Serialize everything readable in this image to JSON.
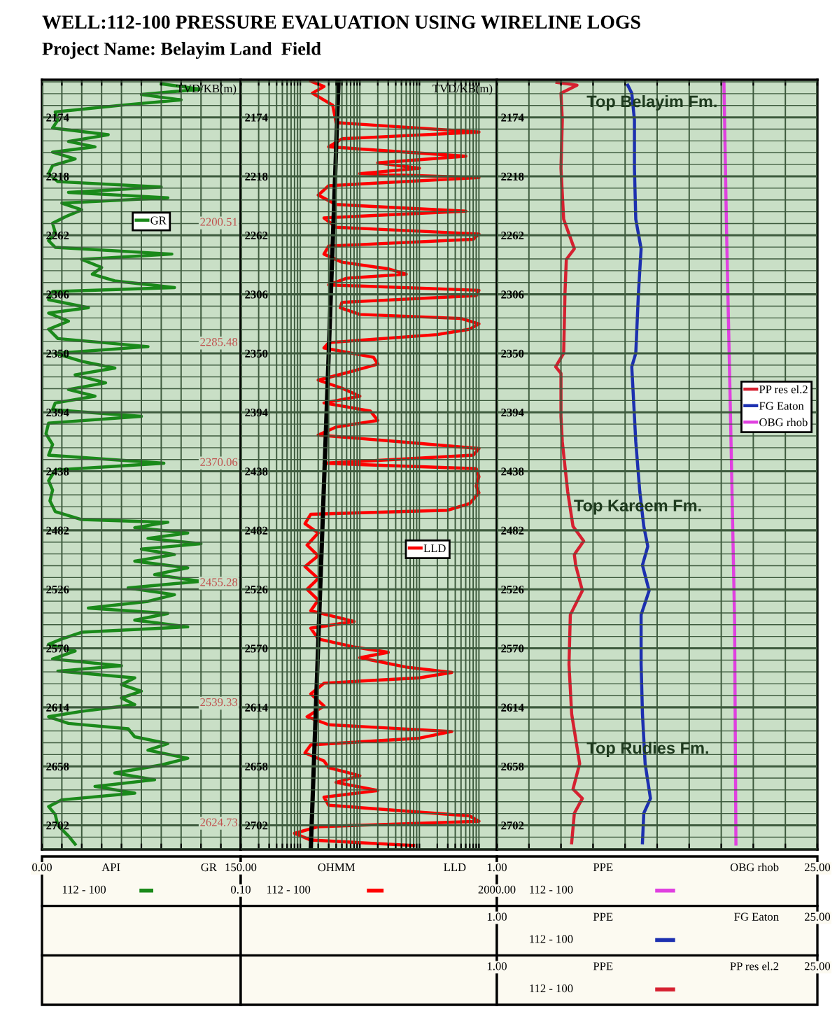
{
  "chart_data": [
    {
      "type": "line",
      "orientation": "horizontal",
      "title": "WELL:112-100 PRESSURE EVALUATION USING WIRELINE LOGS",
      "subtitle": "Project Name: Belayim Land  Field",
      "xlabel": "API",
      "legend_title": "112 - 100",
      "legend": "top",
      "grid": true,
      "xlim": [
        0,
        150
      ],
      "ylim": [
        2720,
        2146
      ],
      "xticks": [
        {
          "value": 0,
          "label": "0.00"
        },
        {
          "value": 15,
          "label": null
        },
        {
          "value": 30,
          "label": null
        },
        {
          "value": 45,
          "label": null
        },
        {
          "value": 60,
          "label": null
        },
        {
          "value": 75,
          "label": null
        },
        {
          "value": 90,
          "label": null
        },
        {
          "value": 105,
          "label": null
        },
        {
          "value": 120,
          "label": null
        },
        {
          "value": 135,
          "label": null
        },
        {
          "value": 150,
          "label": "150.00"
        }
      ],
      "yticks": [
        {
          "value": 2147.6,
          "label": null
        },
        {
          "value": 2156.4,
          "label": null
        },
        {
          "value": 2165.2,
          "label": null
        },
        2174,
        {
          "value": 2182.8,
          "label": null
        },
        {
          "value": 2191.6,
          "label": null
        },
        {
          "value": 2200.4,
          "label": null
        },
        {
          "value": 2209.2,
          "label": null
        },
        2218,
        {
          "value": 2226.8,
          "label": null
        },
        {
          "value": 2235.6,
          "label": null
        },
        {
          "value": 2244.4,
          "label": null
        },
        {
          "value": 2253.2,
          "label": null
        },
        2262,
        {
          "value": 2270.8,
          "label": null
        },
        {
          "value": 2279.6,
          "label": null
        },
        {
          "value": 2288.4,
          "label": null
        },
        {
          "value": 2297.2,
          "label": null
        },
        2306,
        {
          "value": 2314.8,
          "label": null
        },
        {
          "value": 2323.6,
          "label": null
        },
        {
          "value": 2332.4,
          "label": null
        },
        {
          "value": 2341.2,
          "label": null
        },
        2350,
        {
          "value": 2358.8,
          "label": null
        },
        {
          "value": 2367.6,
          "label": null
        },
        {
          "value": 2376.4,
          "label": null
        },
        {
          "value": 2385.2,
          "label": null
        },
        2394,
        {
          "value": 2402.8,
          "label": null
        },
        {
          "value": 2411.6,
          "label": null
        },
        {
          "value": 2420.4,
          "label": null
        },
        {
          "value": 2429.2,
          "label": null
        },
        2438,
        {
          "value": 2446.8,
          "label": null
        },
        {
          "value": 2455.6,
          "label": null
        },
        {
          "value": 2464.4,
          "label": null
        },
        {
          "value": 2473.2,
          "label": null
        },
        2482,
        {
          "value": 2490.8,
          "label": null
        },
        {
          "value": 2499.6,
          "label": null
        },
        {
          "value": 2508.4,
          "label": null
        },
        {
          "value": 2517.2,
          "label": null
        },
        2526,
        {
          "value": 2534.8,
          "label": null
        },
        {
          "value": 2543.6,
          "label": null
        },
        {
          "value": 2552.4,
          "label": null
        },
        {
          "value": 2561.2,
          "label": null
        },
        2570,
        {
          "value": 2578.8,
          "label": null
        },
        {
          "value": 2587.6,
          "label": null
        },
        {
          "value": 2596.4,
          "label": null
        },
        {
          "value": 2605.2,
          "label": null
        },
        2614,
        {
          "value": 2622.8,
          "label": null
        },
        {
          "value": 2631.6,
          "label": null
        },
        {
          "value": 2640.4,
          "label": null
        },
        {
          "value": 2649.2,
          "label": null
        },
        2658,
        {
          "value": 2666.8,
          "label": null
        },
        {
          "value": 2675.6,
          "label": null
        },
        {
          "value": 2684.4,
          "label": null
        },
        {
          "value": 2693.2,
          "label": null
        },
        2702,
        {
          "value": 2710.8,
          "label": null
        },
        {
          "value": 2719.6,
          "label": null
        }
      ],
      "annotations": [
        "2200.51",
        "2285.48",
        "2370.06",
        "2455.28",
        "2539.33",
        "2624.73"
      ],
      "series": [
        {
          "name": "GR",
          "color": "#1a8a1a",
          "x": [
            2149,
            2153,
            2157,
            2161,
            2165,
            2170,
            2176,
            2182,
            2187,
            2192,
            2196,
            2200,
            2205,
            2210,
            2216,
            2222,
            2226,
            2230,
            2234,
            2238,
            2243,
            2248,
            2253,
            2260,
            2266,
            2271,
            2276,
            2280,
            2286,
            2291,
            2296,
            2301,
            2304,
            2310,
            2316,
            2320,
            2326,
            2332,
            2339,
            2345,
            2350,
            2356,
            2361,
            2366,
            2372,
            2377,
            2382,
            2387,
            2392,
            2397,
            2402,
            2410,
            2418,
            2426,
            2432,
            2437,
            2445,
            2452,
            2460,
            2468,
            2474,
            2476,
            2480,
            2484,
            2488,
            2492,
            2496,
            2500,
            2505,
            2510,
            2515,
            2520,
            2525,
            2530,
            2535,
            2540,
            2544,
            2549,
            2554,
            2558,
            2563,
            2567,
            2572,
            2578,
            2583,
            2587,
            2592,
            2597,
            2602,
            2607,
            2612,
            2617,
            2621,
            2626,
            2630,
            2636,
            2641,
            2646,
            2652,
            2657,
            2663,
            2668,
            2673,
            2678,
            2683,
            2688,
            2694,
            2702,
            2710,
            2716
          ],
          "values": [
            90,
            120,
            75,
            105,
            60,
            10,
            12,
            8,
            50,
            20,
            40,
            8,
            25,
            8,
            5,
            12,
            90,
            20,
            95,
            15,
            30,
            18,
            8,
            10,
            5,
            10,
            98,
            30,
            45,
            38,
            55,
            100,
            8,
            5,
            35,
            5,
            20,
            5,
            12,
            80,
            10,
            30,
            55,
            25,
            48,
            20,
            40,
            10,
            8,
            75,
            5,
            3,
            8,
            5,
            92,
            10,
            5,
            8,
            6,
            10,
            30,
            95,
            70,
            110,
            80,
            120,
            75,
            100,
            70,
            110,
            85,
            120,
            65,
            100,
            80,
            35,
            95,
            70,
            110,
            30,
            15,
            5,
            25,
            8,
            60,
            12,
            70,
            60,
            75,
            60,
            70,
            30,
            5,
            20,
            65,
            70,
            95,
            80,
            110,
            90,
            55,
            85,
            40,
            70,
            15,
            5,
            10,
            12,
            20,
            25
          ]
        }
      ]
    },
    {
      "type": "line",
      "orientation": "horizontal",
      "log": "x",
      "xlabel": "OHMM",
      "ylabel": "TVD/KB(m)",
      "legend_title": "112 - 100",
      "legend": "center",
      "grid": true,
      "xlim": [
        0.1,
        2000
      ],
      "ylim": [
        2720,
        2146
      ],
      "xticks": [
        {
          "value": 0.1,
          "label": "0.10"
        },
        {
          "value": 0.2,
          "label": null
        },
        {
          "value": 0.3,
          "label": null
        },
        {
          "value": 0.4,
          "label": null
        },
        {
          "value": 0.5,
          "label": null
        },
        {
          "value": 0.6,
          "label": null
        },
        {
          "value": 0.7,
          "label": null
        },
        {
          "value": 0.8,
          "label": null
        },
        {
          "value": 0.9,
          "label": null
        },
        {
          "value": 1,
          "label": null
        },
        {
          "value": 2,
          "label": null
        },
        {
          "value": 3,
          "label": null
        },
        {
          "value": 4,
          "label": null
        },
        {
          "value": 5,
          "label": null
        },
        {
          "value": 6,
          "label": null
        },
        {
          "value": 7,
          "label": null
        },
        {
          "value": 8,
          "label": null
        },
        {
          "value": 9,
          "label": null
        },
        {
          "value": 10,
          "label": null
        },
        {
          "value": 20,
          "label": null
        },
        {
          "value": 30,
          "label": null
        },
        {
          "value": 40,
          "label": null
        },
        {
          "value": 50,
          "label": null
        },
        {
          "value": 60,
          "label": null
        },
        {
          "value": 70,
          "label": null
        },
        {
          "value": 80,
          "label": null
        },
        {
          "value": 90,
          "label": null
        },
        {
          "value": 100,
          "label": null
        },
        {
          "value": 200,
          "label": null
        },
        {
          "value": 300,
          "label": null
        },
        {
          "value": 400,
          "label": null
        },
        {
          "value": 500,
          "label": null
        },
        {
          "value": 600,
          "label": null
        },
        {
          "value": 700,
          "label": null
        },
        {
          "value": 800,
          "label": null
        },
        {
          "value": 900,
          "label": null
        },
        {
          "value": 1000,
          "label": null
        },
        {
          "value": 2000,
          "label": "2000.00"
        }
      ],
      "yticks": [
        {
          "value": 2147.6,
          "label": null
        },
        {
          "value": 2156.4,
          "label": null
        },
        {
          "value": 2165.2,
          "label": null
        },
        2174,
        {
          "value": 2182.8,
          "label": null
        },
        {
          "value": 2191.6,
          "label": null
        },
        {
          "value": 2200.4,
          "label": null
        },
        {
          "value": 2209.2,
          "label": null
        },
        2218,
        {
          "value": 2226.8,
          "label": null
        },
        {
          "value": 2235.6,
          "label": null
        },
        {
          "value": 2244.4,
          "label": null
        },
        {
          "value": 2253.2,
          "label": null
        },
        2262,
        {
          "value": 2270.8,
          "label": null
        },
        {
          "value": 2279.6,
          "label": null
        },
        {
          "value": 2288.4,
          "label": null
        },
        {
          "value": 2297.2,
          "label": null
        },
        2306,
        {
          "value": 2314.8,
          "label": null
        },
        {
          "value": 2323.6,
          "label": null
        },
        {
          "value": 2332.4,
          "label": null
        },
        {
          "value": 2341.2,
          "label": null
        },
        2350,
        {
          "value": 2358.8,
          "label": null
        },
        {
          "value": 2367.6,
          "label": null
        },
        {
          "value": 2376.4,
          "label": null
        },
        {
          "value": 2385.2,
          "label": null
        },
        2394,
        {
          "value": 2402.8,
          "label": null
        },
        {
          "value": 2411.6,
          "label": null
        },
        {
          "value": 2420.4,
          "label": null
        },
        {
          "value": 2429.2,
          "label": null
        },
        2438,
        {
          "value": 2446.8,
          "label": null
        },
        {
          "value": 2455.6,
          "label": null
        },
        {
          "value": 2464.4,
          "label": null
        },
        {
          "value": 2473.2,
          "label": null
        },
        2482,
        {
          "value": 2490.8,
          "label": null
        },
        {
          "value": 2499.6,
          "label": null
        },
        {
          "value": 2508.4,
          "label": null
        },
        {
          "value": 2517.2,
          "label": null
        },
        2526,
        {
          "value": 2534.8,
          "label": null
        },
        {
          "value": 2543.6,
          "label": null
        },
        {
          "value": 2552.4,
          "label": null
        },
        {
          "value": 2561.2,
          "label": null
        },
        2570,
        {
          "value": 2578.8,
          "label": null
        },
        {
          "value": 2587.6,
          "label": null
        },
        {
          "value": 2596.4,
          "label": null
        },
        {
          "value": 2605.2,
          "label": null
        },
        2614,
        {
          "value": 2622.8,
          "label": null
        },
        {
          "value": 2631.6,
          "label": null
        },
        {
          "value": 2640.4,
          "label": null
        },
        {
          "value": 2649.2,
          "label": null
        },
        2658,
        {
          "value": 2666.8,
          "label": null
        },
        {
          "value": 2675.6,
          "label": null
        },
        {
          "value": 2684.4,
          "label": null
        },
        {
          "value": 2693.2,
          "label": null
        },
        2702,
        {
          "value": 2710.8,
          "label": null
        },
        {
          "value": 2719.6,
          "label": null
        }
      ],
      "series": [
        {
          "name": "LLD",
          "color": "#ff0000",
          "x": [
            2147,
            2151,
            2156,
            2165,
            2178,
            2185,
            2190,
            2196,
            2203,
            2208,
            2212,
            2216,
            2219,
            2225,
            2232,
            2239,
            2244,
            2249,
            2256,
            2261,
            2265,
            2270,
            2276,
            2282,
            2287,
            2291,
            2294,
            2299,
            2303,
            2307,
            2312,
            2316,
            2321,
            2324,
            2328,
            2332,
            2336,
            2342,
            2346,
            2353,
            2358,
            2363,
            2370,
            2376,
            2382,
            2387,
            2393,
            2400,
            2405,
            2411,
            2416,
            2421,
            2426,
            2432,
            2436,
            2442,
            2449,
            2454,
            2462,
            2467,
            2470,
            2477,
            2484,
            2493,
            2501,
            2509,
            2518,
            2526,
            2534,
            2542,
            2550,
            2555,
            2563,
            2569,
            2573,
            2577,
            2584,
            2588,
            2592,
            2596,
            2604,
            2613,
            2621,
            2627,
            2632,
            2637,
            2642,
            2648,
            2654,
            2659,
            2665,
            2670,
            2676,
            2681,
            2687,
            2695,
            2699,
            2703,
            2708,
            2713,
            2717
          ],
          "values": [
            1.5,
            2.5,
            1.6,
            3.5,
            4,
            1000,
            5,
            3,
            600,
            20,
            100,
            10,
            1000,
            3,
            2,
            4,
            600,
            2.5,
            4,
            1000,
            800,
            3,
            2.5,
            5,
            30,
            60,
            6,
            3,
            1000,
            900,
            5,
            4.7,
            10,
            500,
            1000,
            700,
            200,
            3,
            2.5,
            17,
            20,
            8,
            2,
            5,
            10,
            2.5,
            15,
            20,
            4,
            2,
            50,
            1000,
            800,
            2.5,
            900,
            1000,
            900,
            1000,
            700,
            300,
            1.5,
            1.2,
            2,
            1.3,
            2,
            1.2,
            2,
            1.3,
            2,
            1.5,
            8,
            1.5,
            2,
            8,
            30,
            10,
            60,
            350,
            100,
            2.5,
            1.5,
            2.5,
            1.3,
            3,
            350,
            100,
            1.5,
            1.2,
            2.5,
            3,
            10,
            4,
            20,
            2.5,
            3,
            700,
            1000,
            2,
            0.8,
            1.5,
            80
          ]
        },
        {
          "color": "#000000",
          "x": [
            2146,
            2720
          ],
          "values": [
            4.4,
            1.5
          ]
        }
      ]
    },
    {
      "type": "line",
      "orientation": "horizontal",
      "xlabel": "PPE",
      "ylabel": "TVD/KB(m)",
      "legend_title": "112 - 100",
      "legend": "right",
      "grid": true,
      "xlim": [
        1,
        25
      ],
      "ylim": [
        2720,
        2146
      ],
      "xticks": [
        {
          "value": 1,
          "label": "1.00"
        },
        {
          "value": 3.4,
          "label": null
        },
        {
          "value": 5.8,
          "label": null
        },
        {
          "value": 8.2,
          "label": null
        },
        {
          "value": 10.6,
          "label": null
        },
        {
          "value": 13,
          "label": null
        },
        {
          "value": 15.4,
          "label": null
        },
        {
          "value": 17.8,
          "label": null
        },
        {
          "value": 20.2,
          "label": null
        },
        {
          "value": 22.6,
          "label": null
        },
        {
          "value": 25,
          "label": "25.00"
        }
      ],
      "yticks": [
        {
          "value": 2147.6,
          "label": null
        },
        {
          "value": 2156.4,
          "label": null
        },
        {
          "value": 2165.2,
          "label": null
        },
        2174,
        {
          "value": 2182.8,
          "label": null
        },
        {
          "value": 2191.6,
          "label": null
        },
        {
          "value": 2200.4,
          "label": null
        },
        {
          "value": 2209.2,
          "label": null
        },
        2218,
        {
          "value": 2226.8,
          "label": null
        },
        {
          "value": 2235.6,
          "label": null
        },
        {
          "value": 2244.4,
          "label": null
        },
        {
          "value": 2253.2,
          "label": null
        },
        2262,
        {
          "value": 2270.8,
          "label": null
        },
        {
          "value": 2279.6,
          "label": null
        },
        {
          "value": 2288.4,
          "label": null
        },
        {
          "value": 2297.2,
          "label": null
        },
        2306,
        {
          "value": 2314.8,
          "label": null
        },
        {
          "value": 2323.6,
          "label": null
        },
        {
          "value": 2332.4,
          "label": null
        },
        {
          "value": 2341.2,
          "label": null
        },
        2350,
        {
          "value": 2358.8,
          "label": null
        },
        {
          "value": 2367.6,
          "label": null
        },
        {
          "value": 2376.4,
          "label": null
        },
        {
          "value": 2385.2,
          "label": null
        },
        2394,
        {
          "value": 2402.8,
          "label": null
        },
        {
          "value": 2411.6,
          "label": null
        },
        {
          "value": 2420.4,
          "label": null
        },
        {
          "value": 2429.2,
          "label": null
        },
        2438,
        {
          "value": 2446.8,
          "label": null
        },
        {
          "value": 2455.6,
          "label": null
        },
        {
          "value": 2464.4,
          "label": null
        },
        {
          "value": 2473.2,
          "label": null
        },
        2482,
        {
          "value": 2490.8,
          "label": null
        },
        {
          "value": 2499.6,
          "label": null
        },
        {
          "value": 2508.4,
          "label": null
        },
        {
          "value": 2517.2,
          "label": null
        },
        2526,
        {
          "value": 2534.8,
          "label": null
        },
        {
          "value": 2543.6,
          "label": null
        },
        {
          "value": 2552.4,
          "label": null
        },
        {
          "value": 2561.2,
          "label": null
        },
        2570,
        {
          "value": 2578.8,
          "label": null
        },
        {
          "value": 2587.6,
          "label": null
        },
        {
          "value": 2596.4,
          "label": null
        },
        {
          "value": 2605.2,
          "label": null
        },
        2614,
        {
          "value": 2622.8,
          "label": null
        },
        {
          "value": 2631.6,
          "label": null
        },
        {
          "value": 2640.4,
          "label": null
        },
        {
          "value": 2649.2,
          "label": null
        },
        2658,
        {
          "value": 2666.8,
          "label": null
        },
        {
          "value": 2675.6,
          "label": null
        },
        {
          "value": 2684.4,
          "label": null
        },
        {
          "value": 2693.2,
          "label": null
        },
        2702,
        {
          "value": 2710.8,
          "label": null
        },
        {
          "value": 2719.6,
          "label": null
        }
      ],
      "annotations": [
        "Top Belayim Fm.",
        "Top Kareem Fm.",
        "Top Rudies Fm."
      ],
      "series": [
        {
          "name": "PP res el.2",
          "color": "#d62030",
          "x": [
            2148,
            2150,
            2156,
            2176,
            2212,
            2250,
            2272,
            2280,
            2305,
            2350,
            2360,
            2365,
            2397,
            2416,
            2453,
            2479,
            2490,
            2500,
            2508,
            2527,
            2545,
            2582,
            2619,
            2656,
            2675,
            2682,
            2693,
            2715
          ],
          "values": [
            5.5,
            7.0,
            5.8,
            5.9,
            5.8,
            6.0,
            6.8,
            6.2,
            6.1,
            6.0,
            5.4,
            5.8,
            5.8,
            5.9,
            6.3,
            6.7,
            7.5,
            6.8,
            6.9,
            7.4,
            6.5,
            6.4,
            6.6,
            7.2,
            6.7,
            7.4,
            6.8,
            6.6
          ]
        },
        {
          "name": "FG Eaton",
          "color": "#1c2fb0",
          "x": [
            2150,
            2156,
            2176,
            2212,
            2250,
            2272,
            2305,
            2350,
            2360,
            2397,
            2416,
            2453,
            2479,
            2494,
            2508,
            2527,
            2545,
            2582,
            2619,
            2656,
            2682,
            2693,
            2715
          ],
          "values": [
            10.8,
            11.1,
            11.3,
            11.3,
            11.4,
            11.8,
            11.6,
            11.4,
            11.1,
            11.3,
            11.4,
            11.7,
            12.0,
            12.3,
            11.9,
            12.4,
            11.8,
            11.8,
            11.9,
            12.1,
            12.5,
            12.0,
            11.9
          ]
        },
        {
          "name": "OBG rhob",
          "color": "#e040e0",
          "x": [
            2147,
            2260,
            2400,
            2550,
            2716
          ],
          "values": [
            18.0,
            18.2,
            18.5,
            18.8,
            18.9
          ]
        }
      ]
    }
  ]
}
